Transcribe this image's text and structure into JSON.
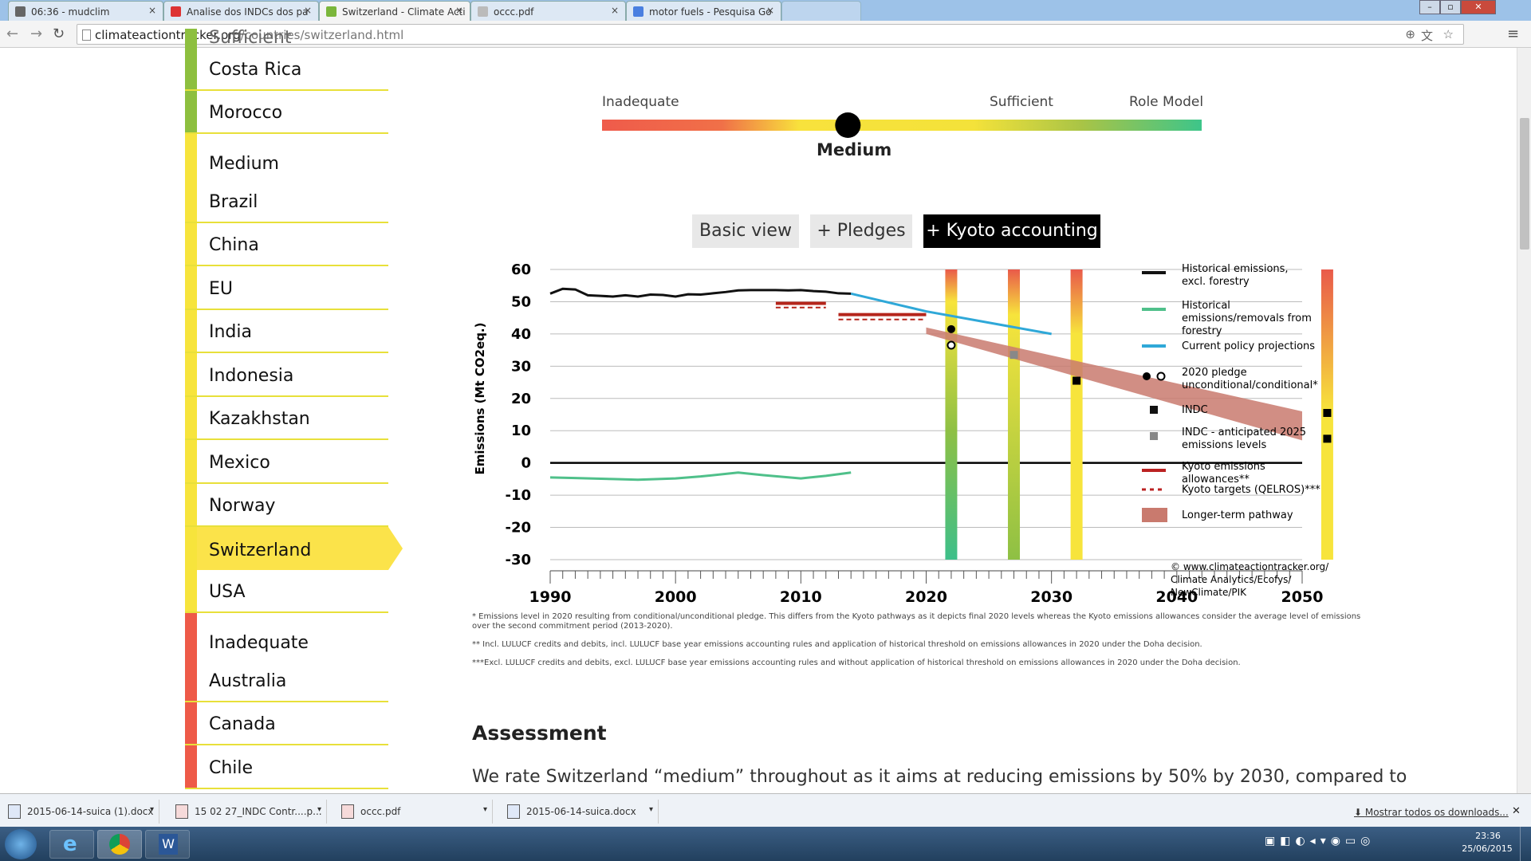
{
  "browser": {
    "tabs": [
      {
        "title": "06:36 - mudclim"
      },
      {
        "title": "Analise dos INDCs dos pa"
      },
      {
        "title": "Switzerland - Climate Acti"
      },
      {
        "title": "occc.pdf"
      },
      {
        "title": "motor fuels - Pesquisa Go"
      }
    ],
    "url_domain": "climateactiontracker.org",
    "url_path": "/countries/switzerland.html"
  },
  "sidebar": {
    "cut_label": "Sufficient",
    "items": [
      {
        "label": "Costa Rica",
        "color": "#8dbf3f"
      },
      {
        "label": "Morocco",
        "color": "#8dbf3f"
      },
      {
        "label": "Medium",
        "color": "#f7e43c",
        "head": true
      },
      {
        "label": "Brazil",
        "color": "#f7e43c"
      },
      {
        "label": "China",
        "color": "#f7e43c"
      },
      {
        "label": "EU",
        "color": "#f7e43c"
      },
      {
        "label": "India",
        "color": "#f7e43c"
      },
      {
        "label": "Indonesia",
        "color": "#f7e43c"
      },
      {
        "label": "Kazakhstan",
        "color": "#f7e43c"
      },
      {
        "label": "Mexico",
        "color": "#f7e43c"
      },
      {
        "label": "Norway",
        "color": "#f7e43c"
      },
      {
        "label": "Switzerland",
        "color": "#f7e43c",
        "selected": true
      },
      {
        "label": "USA",
        "color": "#f7e43c"
      },
      {
        "label": "Inadequate",
        "color": "#ee5a48",
        "head": true
      },
      {
        "label": "Australia",
        "color": "#ee5a48"
      },
      {
        "label": "Canada",
        "color": "#ee5a48"
      },
      {
        "label": "Chile",
        "color": "#ee5a48"
      }
    ]
  },
  "rating": {
    "inadequate": "Inadequate",
    "sufficient": "Sufficient",
    "role_model": "Role Model",
    "current": "Medium",
    "position": 0.41
  },
  "view_buttons": {
    "basic": "Basic view",
    "pledges": "+ Pledges",
    "kyoto": "+ Kyoto accounting"
  },
  "chart_data": {
    "type": "line",
    "ylabel": "Emissions (Mt CO2eq.)",
    "ylim": [
      -30,
      60
    ],
    "xlim": [
      1990,
      2050
    ],
    "yticks": [
      60,
      50,
      40,
      30,
      20,
      10,
      0,
      -10,
      -20,
      -30
    ],
    "xticks": [
      1990,
      2000,
      2010,
      2020,
      2030,
      2040,
      2050
    ],
    "historical": {
      "x": [
        1990,
        1991,
        1992,
        1993,
        1994,
        1995,
        1996,
        1997,
        1998,
        1999,
        2000,
        2001,
        2002,
        2003,
        2004,
        2005,
        2006,
        2007,
        2008,
        2009,
        2010,
        2011,
        2012,
        2013,
        2014
      ],
      "y": [
        52.5,
        54,
        53.8,
        52,
        51.8,
        51.6,
        52,
        51.6,
        52.2,
        52.1,
        51.6,
        52.3,
        52.2,
        52.6,
        53,
        53.5,
        53.6,
        53.6,
        53.6,
        53.5,
        53.6,
        53.3,
        53.1,
        52.6,
        52.5
      ]
    },
    "forestry": {
      "x": [
        1990,
        1992,
        1995,
        1997,
        2000,
        2002,
        2005,
        2007,
        2010,
        2012,
        2014
      ],
      "y": [
        -4.5,
        -4.7,
        -5,
        -5.2,
        -4.8,
        -4.2,
        -3,
        -3.8,
        -4.8,
        -4,
        -3
      ]
    },
    "current_policy": {
      "x": [
        2014,
        2020,
        2030
      ],
      "y": [
        52.5,
        47,
        40
      ]
    },
    "kyoto_allowances": [
      {
        "x": [
          2008,
          2012
        ],
        "y": [
          49.5,
          49.5
        ]
      },
      {
        "x": [
          2013,
          2020
        ],
        "y": [
          46,
          46
        ]
      }
    ],
    "kyoto_targets": [
      {
        "x": [
          2008,
          2012
        ],
        "y": [
          48.2,
          48.2
        ]
      },
      {
        "x": [
          2013,
          2020
        ],
        "y": [
          44.5,
          44.5
        ]
      }
    ],
    "pledge_2020": {
      "unconditional": 41.5,
      "conditional": 36.5
    },
    "indc_2030": 25.5,
    "indc_2025": 33.5,
    "pathway": {
      "x": [
        2020,
        2050
      ],
      "upper": [
        42,
        16
      ],
      "lower": [
        40,
        7
      ]
    },
    "pathway_points_2050": [
      15.5,
      7.5
    ],
    "bars": [
      {
        "x": 2022,
        "colors": [
          "#e95a4a",
          "#f7e43c",
          "#8ec044",
          "#3dbf8a"
        ],
        "stops": [
          60,
          50,
          10,
          -30
        ]
      },
      {
        "x": 2027,
        "colors": [
          "#e95a4a",
          "#f7e43c",
          "#8ec044"
        ],
        "stops": [
          60,
          46,
          -30
        ]
      },
      {
        "x": 2032,
        "colors": [
          "#e95a4a",
          "#f7e43c"
        ],
        "stops": [
          60,
          40,
          -30
        ]
      },
      {
        "x": 2052,
        "colors": [
          "#e95a4a",
          "#f7e43c"
        ],
        "stops": [
          60,
          16,
          -30
        ]
      }
    ],
    "legend": [
      {
        "label": "Historical emissions, excl. forestry",
        "color": "#111",
        "kind": "line"
      },
      {
        "label": "Historical emissions/removals from forestry",
        "color": "#4fc08a",
        "kind": "line"
      },
      {
        "label": "Current policy projections",
        "color": "#2fa8d8",
        "kind": "line"
      },
      {
        "label": "2020 pledge unconditional/conditional*",
        "color": "#111",
        "kind": "dots"
      },
      {
        "label": "INDC",
        "color": "#111",
        "kind": "square"
      },
      {
        "label": "INDC - anticipated 2025 emissions levels",
        "color": "#888",
        "kind": "square"
      },
      {
        "label": "Kyoto emissions allowances**",
        "color": "#b22",
        "kind": "line"
      },
      {
        "label": "Kyoto targets (QELROS)***",
        "color": "#b22",
        "kind": "dash"
      },
      {
        "label": "Longer-term pathway",
        "color": "#c97a6e",
        "kind": "box"
      }
    ],
    "copyright": [
      "© www.climateactiontracker.org/",
      "Climate Analytics/Ecofys/",
      "NewClimate/PIK"
    ]
  },
  "footnotes": [
    "* Emissions level in 2020 resulting from conditional/unconditional pledge. This differs from the Kyoto pathways as it depicts final 2020 levels whereas the Kyoto emissions allowances consider the average level of emissions",
    "over the second commitment period (2013-2020).",
    "** Incl. LULUCF credits and debits, incl. LULUCF base year emissions accounting rules and application of historical threshold on emissions allowances in 2020 under the Doha decision.",
    "***Excl. LULUCF credits and debits, excl. LULUCF base year emissions accounting rules and without application of historical threshold on emissions allowances in 2020 under the Doha decision."
  ],
  "assessment": {
    "title": "Assessment",
    "text": "We rate Switzerland “medium” throughout as it aims at reducing emissions by 50% by 2030, compared to"
  },
  "downloads": {
    "items": [
      "2015-06-14-suica (1).docx",
      "15 02 27_INDC Contr....p...",
      "occc.pdf",
      "2015-06-14-suica.docx"
    ],
    "show_all": "Mostrar todos os downloads..."
  },
  "taskbar": {
    "time": "23:36",
    "date": "25/06/2015"
  }
}
